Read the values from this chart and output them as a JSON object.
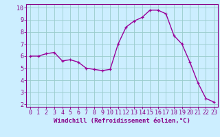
{
  "x": [
    0,
    1,
    2,
    3,
    4,
    5,
    6,
    7,
    8,
    9,
    10,
    11,
    12,
    13,
    14,
    15,
    16,
    17,
    18,
    19,
    20,
    21,
    22,
    23
  ],
  "y": [
    6.0,
    6.0,
    6.2,
    6.3,
    5.6,
    5.7,
    5.5,
    5.0,
    4.9,
    4.8,
    4.9,
    7.0,
    8.4,
    8.9,
    9.2,
    9.8,
    9.8,
    9.5,
    7.7,
    7.0,
    5.5,
    3.8,
    2.5,
    2.2
  ],
  "line_color": "#990099",
  "marker": "+",
  "marker_size": 3,
  "bg_color": "#cceeff",
  "grid_color": "#99cccc",
  "xlabel": "Windchill (Refroidissement éolien,°C)",
  "xlabel_fontsize": 6.5,
  "ylim_min": 1.8,
  "ylim_max": 10.3,
  "xlim_min": -0.5,
  "xlim_max": 23.5,
  "yticks": [
    2,
    3,
    4,
    5,
    6,
    7,
    8,
    9,
    10
  ],
  "xticks": [
    0,
    1,
    2,
    3,
    4,
    5,
    6,
    7,
    8,
    9,
    10,
    11,
    12,
    13,
    14,
    15,
    16,
    17,
    18,
    19,
    20,
    21,
    22,
    23
  ],
  "tick_fontsize": 6,
  "line_width": 1.0,
  "spine_color": "#880088"
}
